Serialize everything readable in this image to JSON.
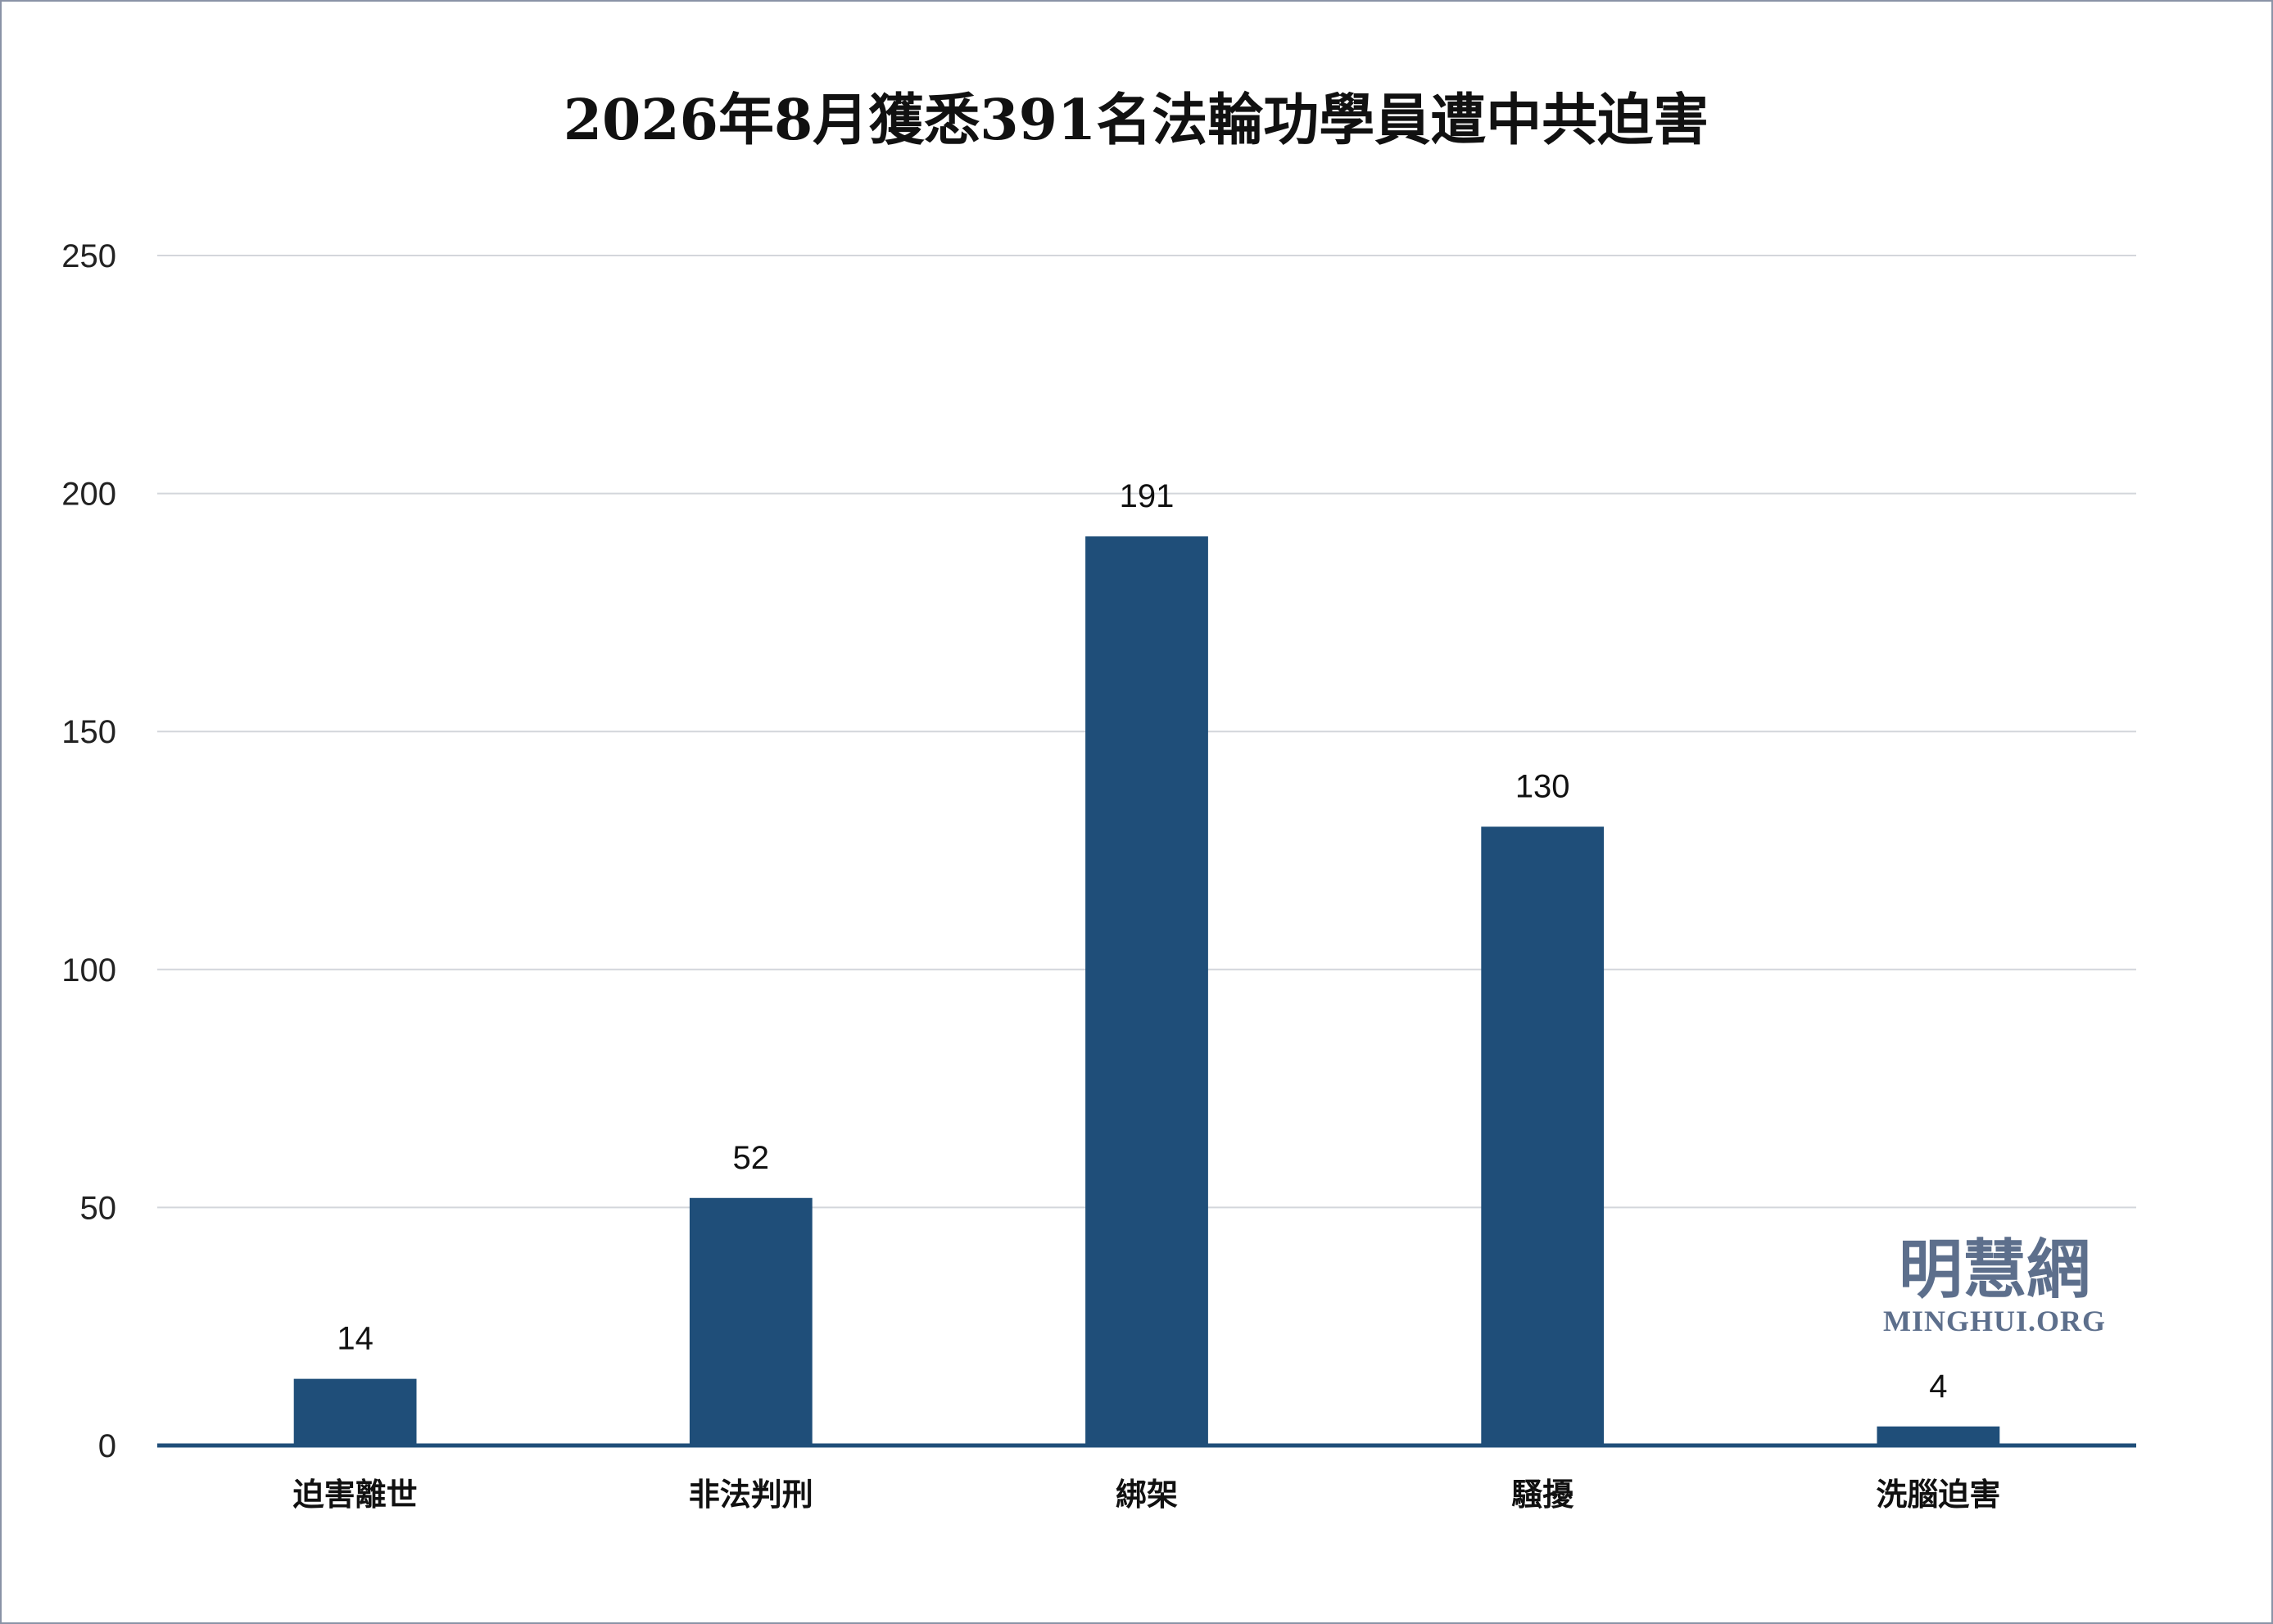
{
  "chart_data": {
    "type": "bar",
    "title": "2026年8月獲悉391名法輪功學員遭中共迫害",
    "categories": [
      "迫害離世",
      "非法判刑",
      "綁架",
      "騷擾",
      "洗腦迫害"
    ],
    "values": [
      14,
      52,
      191,
      130,
      4
    ],
    "data_labels": [
      "14",
      "52",
      "191",
      "130",
      "4"
    ],
    "yticks": [
      0,
      50,
      100,
      150,
      200,
      250
    ],
    "ylim": [
      0,
      250
    ],
    "grid": true,
    "legend": "none",
    "bar_color": "#1f4e79",
    "grid_color": "#d3d6db",
    "axis_color": "#1f4e79"
  },
  "watermark": {
    "cn": "明慧網",
    "en": "MINGHUI.ORG",
    "color": "#5d6f8c"
  }
}
